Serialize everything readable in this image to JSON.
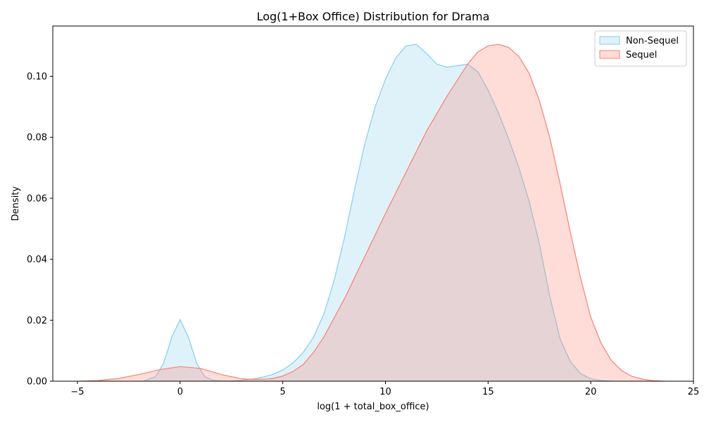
{
  "chart_data": {
    "type": "area",
    "title": "Log(1+Box Office) Distribution for Drama",
    "xlabel": "log(1 + total_box_office)",
    "ylabel": "Density",
    "xlim": [
      -6.2,
      25.0
    ],
    "ylim": [
      0,
      0.1165
    ],
    "xticks": [
      -5,
      0,
      5,
      10,
      15,
      20,
      25
    ],
    "xtick_labels": [
      "−5",
      "0",
      "5",
      "10",
      "15",
      "20",
      "25"
    ],
    "yticks": [
      0,
      0.02,
      0.04,
      0.06,
      0.08,
      0.1
    ],
    "ytick_labels": [
      "0.00",
      "0.02",
      "0.04",
      "0.06",
      "0.08",
      "0.10"
    ],
    "grid": false,
    "legend_position": "top-right",
    "series": [
      {
        "name": "Non-Sequel",
        "line_color": "#87CEEB",
        "fill_color": "#87CEEB",
        "fill_opacity": 0.27,
        "x": [
          -1.8,
          -1.2,
          -0.8,
          -0.4,
          0,
          0.4,
          0.8,
          1.2,
          1.6,
          2.0,
          2.5,
          3.0,
          3.5,
          4.0,
          4.5,
          5.0,
          5.5,
          6.0,
          6.5,
          7.0,
          7.5,
          8.0,
          8.5,
          9.0,
          9.5,
          10.0,
          10.5,
          11.0,
          11.5,
          12.0,
          12.5,
          13.0,
          13.5,
          14.0,
          14.5,
          15.0,
          15.5,
          16.0,
          16.5,
          17.0,
          17.5,
          18.0,
          18.5,
          19.0,
          19.5,
          20.0,
          20.5,
          21.0
        ],
        "y": [
          0.0,
          0.0015,
          0.006,
          0.0145,
          0.0202,
          0.0145,
          0.006,
          0.0015,
          0.0003,
          0.0001,
          0.0001,
          0.0003,
          0.0007,
          0.0013,
          0.0022,
          0.0037,
          0.006,
          0.0095,
          0.0145,
          0.022,
          0.033,
          0.047,
          0.063,
          0.078,
          0.09,
          0.099,
          0.106,
          0.11,
          0.1105,
          0.1075,
          0.104,
          0.103,
          0.1035,
          0.104,
          0.1015,
          0.0955,
          0.088,
          0.0795,
          0.07,
          0.059,
          0.045,
          0.028,
          0.014,
          0.0065,
          0.0025,
          0.0008,
          0.0002,
          0.0
        ]
      },
      {
        "name": "Sequel",
        "line_color": "#FA8072",
        "fill_color": "#FA8072",
        "fill_opacity": 0.27,
        "x": [
          -4.9,
          -4.0,
          -3.0,
          -2.0,
          -1.0,
          0,
          1.0,
          2.0,
          3.0,
          3.5,
          4.0,
          4.5,
          5.0,
          5.5,
          6.0,
          6.5,
          7.0,
          8.0,
          9.0,
          10.0,
          11.0,
          12.0,
          13.0,
          14.0,
          14.5,
          15.0,
          15.5,
          16.0,
          16.5,
          17.0,
          17.5,
          18.0,
          18.5,
          19.0,
          19.5,
          20.0,
          20.5,
          21.0,
          21.5,
          22.0,
          22.5,
          23.0,
          23.6
        ],
        "y": [
          0.0,
          0.0002,
          0.0009,
          0.0022,
          0.0038,
          0.0048,
          0.0042,
          0.0022,
          0.0008,
          0.0006,
          0.0006,
          0.0009,
          0.0017,
          0.0032,
          0.0055,
          0.0095,
          0.0145,
          0.027,
          0.041,
          0.055,
          0.0685,
          0.082,
          0.0935,
          0.104,
          0.108,
          0.11,
          0.1105,
          0.1095,
          0.1065,
          0.101,
          0.092,
          0.08,
          0.065,
          0.049,
          0.034,
          0.021,
          0.0125,
          0.0068,
          0.0035,
          0.0016,
          0.0007,
          0.0002,
          0.0
        ]
      }
    ]
  }
}
